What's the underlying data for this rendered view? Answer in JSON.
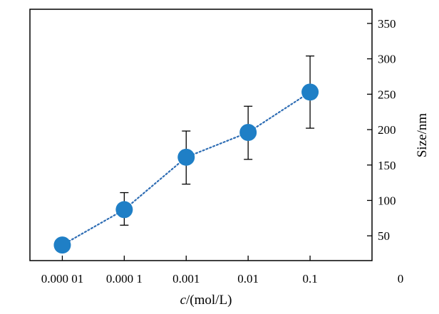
{
  "chart_data": {
    "type": "scatter",
    "title": "",
    "xlabel_italic": "c",
    "xlabel_rest": "/(mol/L)",
    "ylabel": "Size/nm",
    "x_scale": "log",
    "x_ticks": [
      {
        "value": 1e-05,
        "label": "0.000 01"
      },
      {
        "value": 0.0001,
        "label": "0.000 1"
      },
      {
        "value": 0.001,
        "label": "0.001"
      },
      {
        "value": 0.01,
        "label": "0.01"
      },
      {
        "value": 0.1,
        "label": "0.1"
      }
    ],
    "xlim": [
      3e-06,
      1
    ],
    "ylim": [
      15,
      370
    ],
    "y_ticks": [
      50,
      100,
      150,
      200,
      250,
      300,
      350
    ],
    "y_axis_side": "right",
    "corner_label": "0",
    "grid": false,
    "marker_color": "#1f7fc6",
    "line_color": "#2e6db4",
    "line_style": "dotted",
    "series": [
      {
        "x": [
          1e-05,
          0.0001,
          0.001,
          0.01,
          0.1
        ],
        "y": [
          37,
          87,
          161,
          196,
          253
        ],
        "error_low": [
          null,
          65,
          123,
          158,
          202
        ],
        "error_high": [
          null,
          111,
          198,
          233,
          304
        ]
      }
    ]
  }
}
